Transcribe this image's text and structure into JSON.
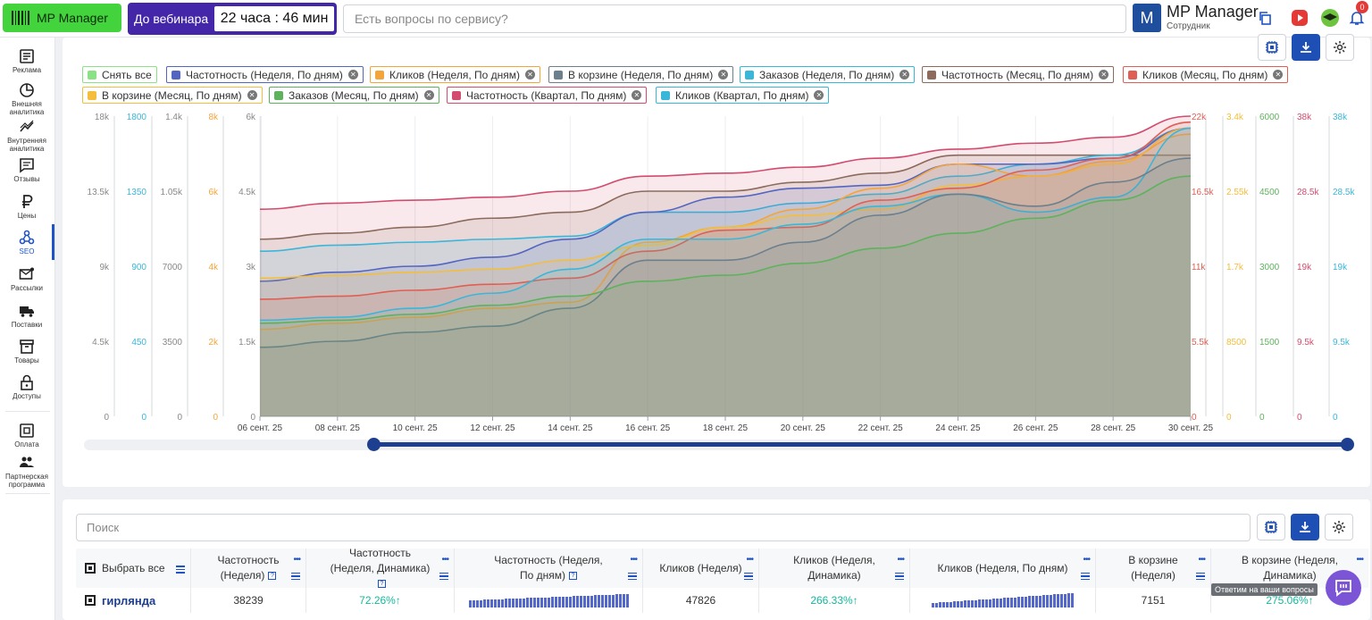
{
  "topbar": {
    "logo": "MP Manager",
    "webinar_label": "До вебинара",
    "webinar_timer": "22 часа : 46 мин",
    "search_placeholder": "Есть вопросы по сервису?",
    "avatar_letter": "M",
    "user_name": "MP Manager",
    "user_role": "Сотрудник",
    "notif_count": "0",
    "icons": [
      "copy-icon",
      "video-icon",
      "academy-icon",
      "bell-icon"
    ]
  },
  "sidebar": {
    "items": [
      {
        "label": "Реклама",
        "icon": "ads-icon"
      },
      {
        "label": "Внешняя аналитика",
        "icon": "pie-chart-icon"
      },
      {
        "label": "Внутренняя аналитика",
        "icon": "trend-icon"
      },
      {
        "label": "Отзывы",
        "icon": "reviews-icon"
      },
      {
        "label": "Цены",
        "icon": "ruble-icon"
      },
      {
        "label": "SEO",
        "icon": "seo-icon",
        "active": true
      },
      {
        "label": "Рассылки",
        "icon": "mail-icon"
      },
      {
        "label": "Поставки",
        "icon": "truck-icon"
      },
      {
        "label": "Товары",
        "icon": "box-icon"
      },
      {
        "label": "Доступы",
        "icon": "lock-icon"
      },
      {
        "label": "Оплата",
        "icon": "payment-icon"
      },
      {
        "label": "Партнерская программа",
        "icon": "partners-icon"
      }
    ]
  },
  "legend": {
    "clear_all": "Снять все",
    "items": [
      {
        "label": "Частотность (Неделя, По дням)",
        "color": "#5465c1"
      },
      {
        "label": "Кликов (Неделя, По дням)",
        "color": "#f3a53c"
      },
      {
        "label": "В корзине (Неделя, По дням)",
        "color": "#6c7f8c"
      },
      {
        "label": "Заказов (Неделя, По дням)",
        "color": "#3ab6d9"
      },
      {
        "label": "Частотность (Месяц, По дням)",
        "color": "#8c6a5c"
      },
      {
        "label": "Кликов (Месяц, По дням)",
        "color": "#e05e52"
      },
      {
        "label": "В корзине (Месяц, По дням)",
        "color": "#f4bd3b"
      },
      {
        "label": "Заказов (Месяц, По дням)",
        "color": "#5db25b"
      },
      {
        "label": "Частотность (Квартал, По дням)",
        "color": "#d34b6e"
      },
      {
        "label": "Кликов (Квартал, По дням)",
        "color": "#3ab6d9"
      }
    ]
  },
  "chart_data": {
    "type": "line",
    "x": [
      "06 сент. 25",
      "08 сент. 25",
      "10 сент. 25",
      "12 сент. 25",
      "14 сент. 25",
      "16 сент. 25",
      "18 сент. 25",
      "20 сент. 25",
      "22 сент. 25",
      "24 сент. 25",
      "26 сент. 25",
      "28 сент. 25",
      "30 сент. 25"
    ],
    "left_axes": [
      {
        "ticks": [
          "18k",
          "13.5k",
          "9k",
          "4.5k",
          "0"
        ],
        "color": "#888888"
      },
      {
        "ticks": [
          "1800",
          "1350",
          "900",
          "450",
          "0"
        ],
        "color": "#3ab6d9"
      },
      {
        "ticks": [
          "1.4k",
          "1.05k",
          "7000",
          "3500",
          "0"
        ],
        "color": "#888888"
      },
      {
        "ticks": [
          "8k",
          "6k",
          "4k",
          "2k",
          "0"
        ],
        "color": "#f3a53c"
      },
      {
        "ticks": [
          "6k",
          "4.5k",
          "3k",
          "1.5k",
          "0"
        ],
        "color": "#888888"
      }
    ],
    "right_axes": [
      {
        "ticks": [
          "22k",
          "16.5k",
          "11k",
          "5.5k",
          "0"
        ],
        "color": "#e05e52"
      },
      {
        "ticks": [
          "3.4k",
          "2.55k",
          "1.7k",
          "8500",
          "0"
        ],
        "color": "#f4bd3b"
      },
      {
        "ticks": [
          "6000",
          "4500",
          "3000",
          "1500",
          "0"
        ],
        "color": "#5db25b"
      },
      {
        "ticks": [
          "38k",
          "28.5k",
          "19k",
          "9.5k",
          "0"
        ],
        "color": "#d34b6e"
      },
      {
        "ticks": [
          "38k",
          "28.5k",
          "19k",
          "9.5k",
          "0"
        ],
        "color": "#3ab6d9"
      }
    ],
    "series": [
      {
        "name": "Частотность (Квартал, По дням)",
        "color": "#d34b6e",
        "values": [
          0.69,
          0.71,
          0.72,
          0.73,
          0.75,
          0.8,
          0.81,
          0.83,
          0.86,
          0.89,
          0.91,
          0.93,
          1.0
        ]
      },
      {
        "name": "Частотность (Месяц, По дням)",
        "color": "#8c6a5c",
        "values": [
          0.59,
          0.61,
          0.63,
          0.66,
          0.68,
          0.75,
          0.75,
          0.78,
          0.81,
          0.87,
          0.87,
          0.87,
          0.87
        ]
      },
      {
        "name": "Кликов (Квартал, По дням)",
        "color": "#3ab6d9",
        "values": [
          0.55,
          0.57,
          0.58,
          0.59,
          0.6,
          0.68,
          0.68,
          0.71,
          0.74,
          0.8,
          0.84,
          0.87,
          0.96
        ]
      },
      {
        "name": "Частотность (Неделя, По дням)",
        "color": "#5465c1",
        "values": [
          0.45,
          0.48,
          0.5,
          0.53,
          0.59,
          0.68,
          0.73,
          0.76,
          0.77,
          0.84,
          0.84,
          0.86,
          0.96
        ]
      },
      {
        "name": "Кликов (Неделя, По дням)",
        "color": "#f3a53c",
        "values": [
          0.29,
          0.31,
          0.33,
          0.36,
          0.38,
          0.58,
          0.63,
          0.69,
          0.76,
          0.84,
          0.8,
          0.85,
          0.94
        ]
      },
      {
        "name": "В корзине (Месяц, По дням)",
        "color": "#f4bd3b",
        "values": [
          0.46,
          0.47,
          0.48,
          0.49,
          0.52,
          0.57,
          0.63,
          0.67,
          0.69,
          0.77,
          0.8,
          0.84,
          0.96
        ]
      },
      {
        "name": "Кликов (Месяц, По дням)",
        "color": "#e05e52",
        "values": [
          0.39,
          0.4,
          0.42,
          0.44,
          0.46,
          0.55,
          0.62,
          0.63,
          0.72,
          0.76,
          0.82,
          0.86,
          0.98
        ]
      },
      {
        "name": "Заказов (Неделя, По дням)",
        "color": "#3ab6d9",
        "values": [
          0.32,
          0.33,
          0.36,
          0.41,
          0.49,
          0.59,
          0.59,
          0.64,
          0.7,
          0.74,
          0.68,
          0.73,
          0.96
        ]
      },
      {
        "name": "В корзине (Неделя, По дням)",
        "color": "#6c7f8c",
        "values": [
          0.23,
          0.25,
          0.28,
          0.3,
          0.36,
          0.52,
          0.52,
          0.58,
          0.67,
          0.74,
          0.7,
          0.78,
          0.86
        ]
      },
      {
        "name": "Заказов (Месяц, По дням)",
        "color": "#5db25b",
        "values": [
          0.31,
          0.32,
          0.34,
          0.37,
          0.4,
          0.45,
          0.47,
          0.51,
          0.56,
          0.61,
          0.66,
          0.72,
          0.8
        ]
      }
    ],
    "ylim": [
      0,
      1
    ]
  },
  "table": {
    "search_placeholder": "Поиск",
    "columns": [
      {
        "label": "Выбрать все"
      },
      {
        "label": "Частотность (Неделя)"
      },
      {
        "label": "Частотность (Неделя, Динамика)"
      },
      {
        "label": "Частотность (Неделя, По дням)"
      },
      {
        "label": "Кликов (Неделя)"
      },
      {
        "label": "Кликов (Неделя, Динамика)"
      },
      {
        "label": "Кликов (Неделя, По дням)"
      },
      {
        "label": "В корзине (Неделя)"
      },
      {
        "label": "В корзине (Неделя, Динамика)"
      }
    ],
    "rows": [
      {
        "keyword": "гирлянда",
        "freq_week": "38239",
        "freq_dyn": "72.26%↑",
        "clicks_week": "47826",
        "clicks_dyn": "266.33%↑",
        "cart_week": "7151",
        "cart_dyn": "275.06%↑"
      }
    ],
    "tooltip": "Ответим на ваши вопросы"
  }
}
